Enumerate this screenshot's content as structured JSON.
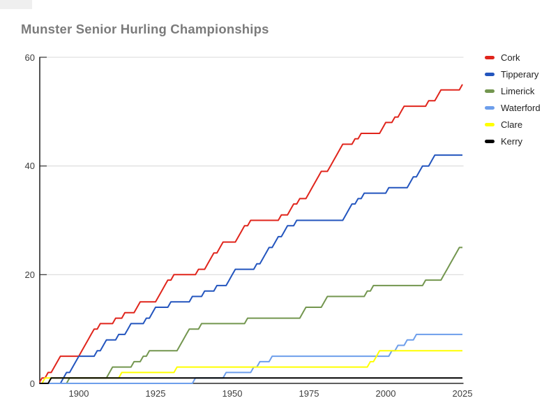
{
  "chart_data": {
    "type": "line",
    "title": "Munster Senior Hurling Championships",
    "subtitle": "",
    "xlabel": "",
    "ylabel": "",
    "x_ticks": [
      1900,
      1925,
      1950,
      1975,
      2000,
      2025
    ],
    "y_ticks": [
      0,
      20,
      40,
      60
    ],
    "ylim": [
      0,
      60
    ],
    "x_range": [
      1887,
      2025
    ],
    "grid": true,
    "legend_position": "right",
    "value_semantics": "cumulative Munster SHC titles by year",
    "series": [
      {
        "name": "Cork",
        "color": "#e0251c",
        "total": 55,
        "win_years": [
          1888,
          1890,
          1892,
          1893,
          1894,
          1901,
          1902,
          1903,
          1904,
          1905,
          1907,
          1912,
          1915,
          1919,
          1920,
          1926,
          1927,
          1928,
          1929,
          1931,
          1939,
          1942,
          1943,
          1944,
          1946,
          1947,
          1952,
          1953,
          1954,
          1956,
          1966,
          1969,
          1970,
          1972,
          1975,
          1976,
          1977,
          1978,
          1979,
          1982,
          1983,
          1984,
          1985,
          1986,
          1990,
          1992,
          1999,
          2000,
          2003,
          2005,
          2006,
          2014,
          2017,
          2018,
          2025
        ]
      },
      {
        "name": "Tipperary",
        "color": "#2355be",
        "total": 42,
        "win_years": [
          1895,
          1896,
          1898,
          1899,
          1900,
          1906,
          1908,
          1909,
          1913,
          1916,
          1917,
          1922,
          1924,
          1925,
          1930,
          1937,
          1941,
          1945,
          1949,
          1950,
          1951,
          1958,
          1960,
          1961,
          1962,
          1964,
          1965,
          1967,
          1968,
          1971,
          1987,
          1988,
          1989,
          1991,
          1993,
          2001,
          2008,
          2009,
          2011,
          2012,
          2015,
          2016
        ]
      },
      {
        "name": "Limerick",
        "color": "#73964f",
        "total": 25,
        "win_years": [
          1897,
          1910,
          1911,
          1918,
          1921,
          1923,
          1933,
          1934,
          1935,
          1936,
          1940,
          1955,
          1973,
          1974,
          1980,
          1981,
          1994,
          1996,
          2013,
          2019,
          2020,
          2021,
          2022,
          2023,
          2024
        ]
      },
      {
        "name": "Waterford",
        "color": "#6d9eeb",
        "total": 9,
        "win_years": [
          1938,
          1948,
          1957,
          1959,
          1963,
          2002,
          2004,
          2007,
          2010
        ]
      },
      {
        "name": "Clare",
        "color": "#ffff00",
        "total": 6,
        "win_years": [
          1889,
          1914,
          1932,
          1995,
          1997,
          1998
        ]
      },
      {
        "name": "Kerry",
        "color": "#000000",
        "total": 1,
        "win_years": [
          1891
        ]
      }
    ]
  }
}
